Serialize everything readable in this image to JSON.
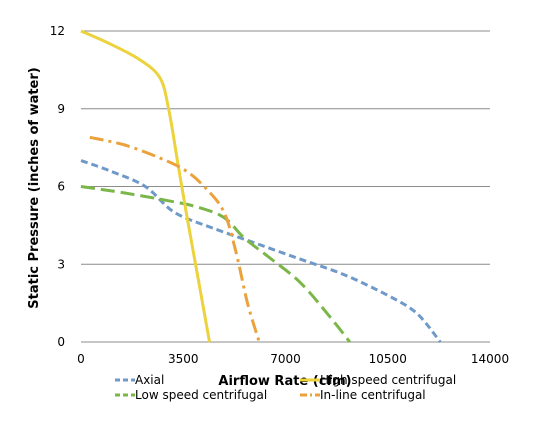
{
  "chart_data": {
    "type": "line",
    "title": "",
    "xlabel": "Airflow Rate (cfm)",
    "ylabel": "Static Pressure (inches of water)",
    "xlim": [
      0,
      14000
    ],
    "ylim": [
      0,
      12
    ],
    "xticks": [
      0,
      3500,
      7000,
      10500,
      14000
    ],
    "xtick_labels": [
      "0",
      "3500",
      "7000",
      "10500",
      "14000"
    ],
    "yticks": [
      0,
      3,
      6,
      9,
      12
    ],
    "ytick_labels": [
      "0",
      "3",
      "6",
      "9",
      "12"
    ],
    "grid": "horizontal",
    "legend_position": "bottom",
    "series": [
      {
        "name": "Axial",
        "color": "#6f99c9",
        "dash": "short-dash",
        "points": [
          [
            0,
            7.0
          ],
          [
            1000,
            6.6
          ],
          [
            2200,
            6.0
          ],
          [
            3200,
            5.0
          ],
          [
            4500,
            4.4
          ],
          [
            6000,
            3.8
          ],
          [
            7500,
            3.2
          ],
          [
            9000,
            2.6
          ],
          [
            10500,
            1.8
          ],
          [
            11500,
            1.1
          ],
          [
            12300,
            0.0
          ]
        ]
      },
      {
        "name": "Low speed centrifugal",
        "color": "#7ab648",
        "dash": "long-dash",
        "points": [
          [
            0,
            6.0
          ],
          [
            1500,
            5.75
          ],
          [
            3000,
            5.45
          ],
          [
            4000,
            5.2
          ],
          [
            4900,
            4.8
          ],
          [
            5600,
            4.0
          ],
          [
            6400,
            3.3
          ],
          [
            7500,
            2.3
          ],
          [
            8500,
            1.0
          ],
          [
            9200,
            0.0
          ]
        ]
      },
      {
        "name": "High speed centrifugal",
        "color": "#ecd33d",
        "dash": "solid",
        "points": [
          [
            0,
            12.0
          ],
          [
            1000,
            11.5
          ],
          [
            2000,
            10.9
          ],
          [
            2700,
            10.2
          ],
          [
            3000,
            9.0
          ],
          [
            3300,
            7.0
          ],
          [
            3600,
            5.0
          ],
          [
            4000,
            2.5
          ],
          [
            4400,
            0.0
          ]
        ]
      },
      {
        "name": "In-line centrifugal",
        "color": "#eba23d",
        "dash": "dash-dot",
        "points": [
          [
            300,
            7.9
          ],
          [
            1500,
            7.6
          ],
          [
            2700,
            7.1
          ],
          [
            3600,
            6.6
          ],
          [
            4300,
            5.9
          ],
          [
            4900,
            5.0
          ],
          [
            5300,
            3.5
          ],
          [
            5700,
            1.5
          ],
          [
            6100,
            0.0
          ]
        ]
      }
    ]
  }
}
